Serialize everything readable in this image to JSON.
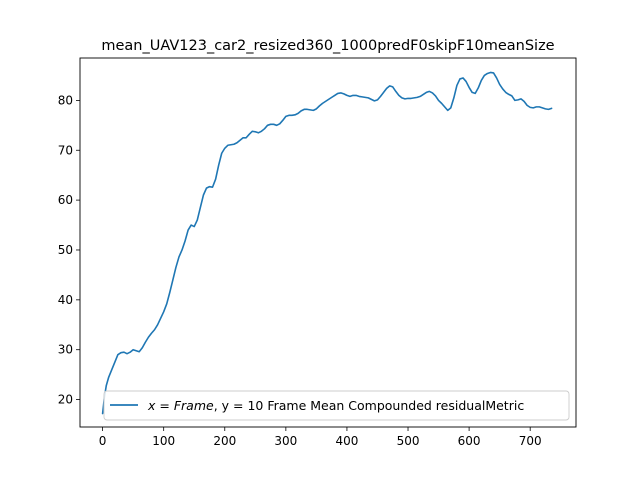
{
  "chart_data": {
    "type": "line",
    "title": "mean_UAV123_car2_resized360_1000predF0skipF10meanSize",
    "xlabel": "",
    "ylabel": "",
    "xlim": [
      -37,
      775
    ],
    "ylim": [
      14.5,
      88.5
    ],
    "xticks": [
      0,
      100,
      200,
      300,
      400,
      500,
      600,
      700
    ],
    "yticks": [
      20,
      30,
      40,
      50,
      60,
      70,
      80
    ],
    "grid": false,
    "legend_position": "lower-right",
    "legend": {
      "math_x": "x",
      "eq1": " = ",
      "math_frame": "Frame",
      "rest": ", y = 10 Frame Mean Compounded residualMetric"
    },
    "series": [
      {
        "color": "#1f77b4",
        "x": [
          0,
          3,
          6,
          10,
          15,
          20,
          25,
          30,
          35,
          40,
          45,
          50,
          55,
          60,
          65,
          70,
          75,
          80,
          85,
          90,
          95,
          100,
          105,
          110,
          115,
          120,
          125,
          130,
          135,
          140,
          145,
          150,
          155,
          160,
          165,
          170,
          175,
          180,
          185,
          190,
          195,
          200,
          205,
          210,
          215,
          220,
          225,
          230,
          235,
          240,
          245,
          250,
          255,
          260,
          265,
          270,
          275,
          280,
          285,
          290,
          295,
          300,
          305,
          310,
          315,
          320,
          325,
          330,
          335,
          340,
          345,
          350,
          355,
          360,
          365,
          370,
          375,
          380,
          385,
          390,
          395,
          400,
          405,
          410,
          415,
          420,
          425,
          430,
          435,
          440,
          445,
          450,
          455,
          460,
          465,
          470,
          475,
          480,
          485,
          490,
          495,
          500,
          505,
          510,
          515,
          520,
          525,
          530,
          535,
          540,
          545,
          550,
          555,
          560,
          565,
          570,
          575,
          580,
          585,
          590,
          595,
          600,
          605,
          610,
          615,
          620,
          625,
          630,
          635,
          640,
          645,
          650,
          655,
          660,
          665,
          670,
          675,
          680,
          685,
          690,
          695,
          700,
          705,
          710,
          715,
          720,
          725,
          730,
          735
        ],
        "y": [
          17.2,
          20.5,
          22.8,
          24.5,
          26.0,
          27.5,
          29.0,
          29.4,
          29.5,
          29.2,
          29.5,
          30.0,
          29.8,
          29.6,
          30.4,
          31.5,
          32.5,
          33.3,
          34.0,
          35.0,
          36.3,
          37.6,
          39.2,
          41.5,
          44.0,
          46.5,
          48.6,
          50.0,
          51.8,
          54.0,
          55.0,
          54.7,
          56.0,
          58.5,
          61.0,
          62.4,
          62.7,
          62.6,
          64.2,
          67.0,
          69.4,
          70.4,
          71.0,
          71.1,
          71.2,
          71.5,
          72.0,
          72.5,
          72.5,
          73.2,
          73.8,
          73.7,
          73.5,
          73.8,
          74.3,
          75.0,
          75.2,
          75.2,
          75.0,
          75.3,
          76.0,
          76.8,
          77.0,
          77.0,
          77.1,
          77.4,
          77.9,
          78.2,
          78.2,
          78.1,
          78.0,
          78.3,
          78.9,
          79.4,
          79.8,
          80.2,
          80.6,
          81.0,
          81.4,
          81.5,
          81.3,
          81.0,
          80.8,
          81.0,
          81.0,
          80.8,
          80.7,
          80.6,
          80.5,
          80.2,
          79.9,
          80.1,
          80.8,
          81.6,
          82.4,
          82.9,
          82.7,
          81.8,
          81.0,
          80.5,
          80.3,
          80.4,
          80.4,
          80.5,
          80.6,
          80.8,
          81.2,
          81.6,
          81.8,
          81.5,
          80.9,
          80.0,
          79.4,
          78.7,
          78.0,
          78.5,
          80.5,
          83.0,
          84.3,
          84.5,
          83.8,
          82.6,
          81.6,
          81.4,
          82.5,
          84.0,
          85.0,
          85.4,
          85.6,
          85.5,
          84.5,
          83.2,
          82.3,
          81.6,
          81.2,
          80.9,
          80.0,
          80.1,
          80.3,
          79.8,
          79.0,
          78.6,
          78.5,
          78.7,
          78.7,
          78.5,
          78.3,
          78.2,
          78.4
        ]
      }
    ]
  }
}
